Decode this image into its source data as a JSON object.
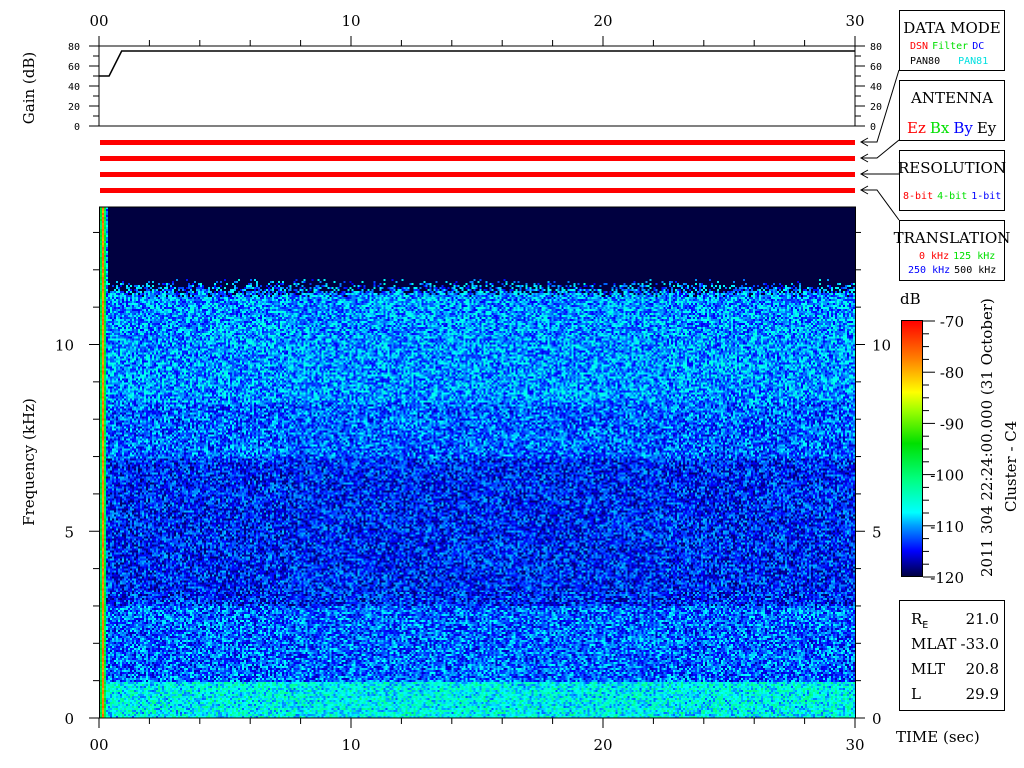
{
  "chart_data": [
    {
      "type": "line",
      "ylabel": "Gain (dB)",
      "xlim": [
        0,
        30
      ],
      "ylim": [
        0,
        80
      ],
      "y_ticks": [
        "0",
        "20",
        "40",
        "60",
        "80"
      ],
      "x_ticks": [
        "00",
        "10",
        "20",
        "30"
      ],
      "series": [
        {
          "x": [
            0,
            0.4,
            0.5,
            0.6,
            0.7,
            0.8,
            0.9,
            30
          ],
          "y": [
            50,
            50,
            55,
            60,
            65,
            70,
            75,
            75
          ]
        }
      ]
    },
    {
      "type": "heatmap",
      "xlabel": "TIME (sec)",
      "ylabel": "Frequency (kHz)",
      "xlim": [
        0,
        30
      ],
      "ylim": [
        0,
        13.7
      ],
      "x_ticks": [
        "00",
        "10",
        "20",
        "30"
      ],
      "y_ticks": [
        "0",
        "5",
        "10"
      ],
      "colorbar": {
        "label": "dB",
        "range": [
          -120,
          -70
        ],
        "ticks": [
          "-70",
          "-80",
          "-90",
          "-100",
          "-110",
          "-120"
        ]
      },
      "noise_cutoff_khz": 11.3,
      "enhanced_band_khz": [
        0,
        1
      ]
    }
  ],
  "status_bars": {
    "color": "#ff0000",
    "count": 4
  },
  "data_mode": {
    "title": "DATA MODE",
    "items": [
      {
        "label": "DSN",
        "color": "#ff0000"
      },
      {
        "label": "Filter",
        "color": "#00e000"
      },
      {
        "label": "DC",
        "color": "#0000ff"
      },
      {
        "label": "PAN80",
        "color": "#000000"
      },
      {
        "label": "PAN81",
        "color": "#00e0e0"
      }
    ]
  },
  "antenna": {
    "title": "ANTENNA",
    "items": [
      {
        "label": "Ez",
        "color": "#ff0000"
      },
      {
        "label": "Bx",
        "color": "#00e000"
      },
      {
        "label": "By",
        "color": "#0000ff"
      },
      {
        "label": "Ey",
        "color": "#000000"
      }
    ]
  },
  "resolution": {
    "title": "RESOLUTION",
    "items": [
      {
        "label": "8-bit",
        "color": "#ff0000"
      },
      {
        "label": "4-bit",
        "color": "#00e000"
      },
      {
        "label": "1-bit",
        "color": "#0000ff"
      }
    ]
  },
  "translation": {
    "title": "TRANSLATION",
    "items": [
      {
        "label": "0 kHz",
        "color": "#ff0000"
      },
      {
        "label": "125 kHz",
        "color": "#00e000"
      },
      {
        "label": "250 kHz",
        "color": "#0000ff"
      },
      {
        "label": "500 kHz",
        "color": "#000000"
      }
    ]
  },
  "timestamp": "2011 304 22:24:00.000 (31 October)",
  "spacecraft": "Cluster - C4",
  "orbit": {
    "re_label": "R",
    "re_sub": "E",
    "re_value": "21.0",
    "mlat_label": "MLAT",
    "mlat_value": "-33.0",
    "mlt_label": "MLT",
    "mlt_value": "20.8",
    "l_label": "L",
    "l_value": "29.9"
  }
}
